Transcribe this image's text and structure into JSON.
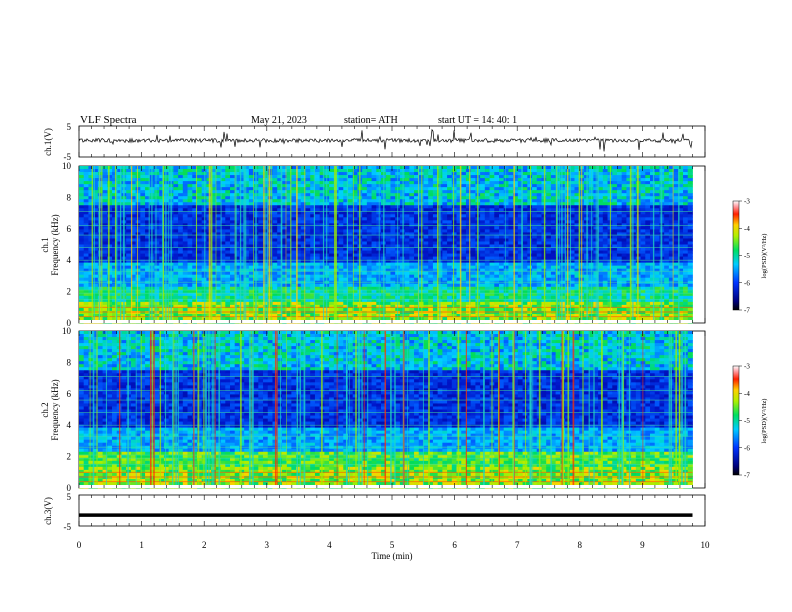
{
  "header": {
    "title": "VLF  Spectra",
    "date": "May 21, 2023",
    "station": "station= ATH",
    "start": "start  UT  =    14: 40: 1"
  },
  "colors": {
    "spectrogram_low": "#0000a0",
    "spectrogram_mid": "#00c000",
    "spectrogram_high": "#ff0000",
    "trace": "#000000"
  },
  "chart_data": [
    {
      "type": "line",
      "name": "ch1-voltage",
      "ylabel": "ch.1(V)",
      "ylim": [
        -5,
        5
      ],
      "y_ticks": [
        "5",
        "-5"
      ],
      "xlim": [
        0,
        10
      ],
      "mean_value": 0,
      "description_level": "noisy trace centered near 0 V with spikes"
    },
    {
      "type": "heatmap",
      "name": "ch1-spectrogram",
      "ylabel": "ch.1\nFrequency  (kHz)",
      "ylabel_lines": [
        "ch.1",
        "Frequency  (kHz)"
      ],
      "ylim": [
        0,
        10
      ],
      "y_ticks": [
        "10",
        "8",
        "6",
        "4",
        "2",
        "0"
      ],
      "xlim": [
        0,
        9.8
      ],
      "colorbar": {
        "label": "log(PSD)(V²/Hz)",
        "range": [
          -7,
          -3
        ],
        "ticks": [
          "-3",
          "-4",
          "-5",
          "-6",
          "-7"
        ]
      }
    },
    {
      "type": "heatmap",
      "name": "ch2-spectrogram",
      "ylabel": "ch.2\nFrequency  (kHz)",
      "ylabel_lines": [
        "ch.2",
        "Frequency  (kHz)"
      ],
      "ylim": [
        0,
        10
      ],
      "y_ticks": [
        "10",
        "8",
        "6",
        "4",
        "2",
        "0"
      ],
      "xlim": [
        0,
        9.8
      ],
      "colorbar": {
        "label": "log(PSD)(V²/Hz)",
        "range": [
          -7,
          -3
        ],
        "ticks": [
          "-3",
          "-4",
          "-5",
          "-6",
          "-7"
        ]
      }
    },
    {
      "type": "line",
      "name": "ch3-voltage",
      "ylabel": "ch.3(V)",
      "ylim": [
        -5,
        5
      ],
      "y_ticks": [
        "5",
        "-5"
      ],
      "xlim": [
        0,
        10
      ],
      "mean_value": -1.5
    }
  ],
  "x_axis": {
    "label": "Time  (min)",
    "ticks": [
      "0",
      "1",
      "2",
      "3",
      "4",
      "5",
      "6",
      "7",
      "8",
      "9",
      "10"
    ]
  }
}
